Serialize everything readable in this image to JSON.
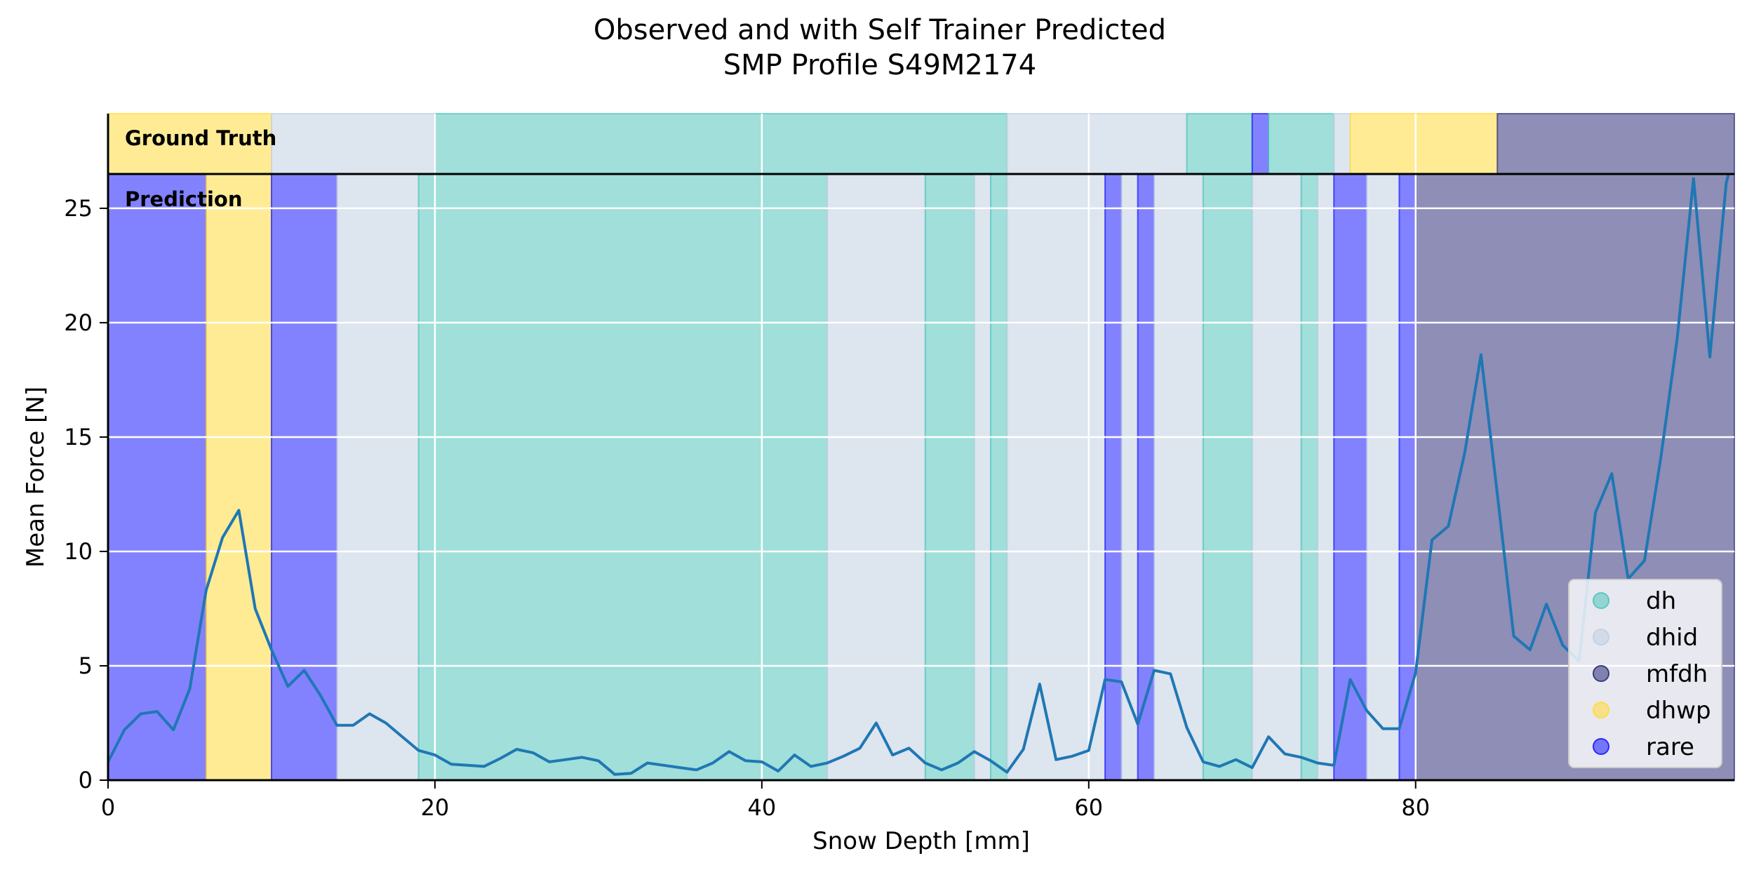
{
  "chart_data": {
    "type": "line",
    "title": "Observed and with Self Trainer Predicted\nSMP Profile S49M2174",
    "title_lines": [
      "Observed and with Self Trainer Predicted",
      "SMP Profile S49M2174"
    ],
    "xlabel": "Snow Depth [mm]",
    "ylabel": "Mean Force [N]",
    "xlim": [
      0,
      99.5
    ],
    "ylim": [
      0,
      26.5
    ],
    "x_ticks": [
      0,
      20,
      40,
      60,
      80
    ],
    "y_ticks": [
      0,
      5,
      10,
      15,
      20,
      25
    ],
    "grid": true,
    "legend_placement": "lower-right",
    "panel_labels": {
      "ground_truth": "Ground Truth",
      "prediction": "Prediction"
    },
    "classes": [
      {
        "name": "dh",
        "color": "#5cc8c0"
      },
      {
        "name": "dhid",
        "color": "#c4d2e4"
      },
      {
        "name": "mfdh",
        "color": "#3c3c82"
      },
      {
        "name": "dhwp",
        "color": "#ffdc46"
      },
      {
        "name": "rare",
        "color": "#2828ff"
      }
    ],
    "ground_truth_segments": [
      {
        "start": 0,
        "end": 10,
        "class": "dhwp"
      },
      {
        "start": 10,
        "end": 20,
        "class": "dhid"
      },
      {
        "start": 20,
        "end": 55,
        "class": "dh"
      },
      {
        "start": 55,
        "end": 66,
        "class": "dhid"
      },
      {
        "start": 66,
        "end": 70,
        "class": "dh"
      },
      {
        "start": 70,
        "end": 71,
        "class": "rare"
      },
      {
        "start": 71,
        "end": 75,
        "class": "dh"
      },
      {
        "start": 75,
        "end": 76,
        "class": "dhid"
      },
      {
        "start": 76,
        "end": 85,
        "class": "dhwp"
      },
      {
        "start": 85,
        "end": 99.5,
        "class": "mfdh"
      }
    ],
    "prediction_segments": [
      {
        "start": 0,
        "end": 6,
        "class": "rare"
      },
      {
        "start": 6,
        "end": 10,
        "class": "dhwp"
      },
      {
        "start": 10,
        "end": 14,
        "class": "rare"
      },
      {
        "start": 14,
        "end": 19,
        "class": "dhid"
      },
      {
        "start": 19,
        "end": 44,
        "class": "dh"
      },
      {
        "start": 44,
        "end": 50,
        "class": "dhid"
      },
      {
        "start": 50,
        "end": 53,
        "class": "dh"
      },
      {
        "start": 53,
        "end": 54,
        "class": "dhid"
      },
      {
        "start": 54,
        "end": 55,
        "class": "dh"
      },
      {
        "start": 55,
        "end": 61,
        "class": "dhid"
      },
      {
        "start": 61,
        "end": 62,
        "class": "rare"
      },
      {
        "start": 62,
        "end": 63,
        "class": "dhid"
      },
      {
        "start": 63,
        "end": 64,
        "class": "rare"
      },
      {
        "start": 64,
        "end": 67,
        "class": "dhid"
      },
      {
        "start": 67,
        "end": 70,
        "class": "dh"
      },
      {
        "start": 70,
        "end": 73,
        "class": "dhid"
      },
      {
        "start": 73,
        "end": 74,
        "class": "dh"
      },
      {
        "start": 74,
        "end": 75,
        "class": "dhid"
      },
      {
        "start": 75,
        "end": 77,
        "class": "rare"
      },
      {
        "start": 77,
        "end": 79,
        "class": "dhid"
      },
      {
        "start": 79,
        "end": 80,
        "class": "rare"
      },
      {
        "start": 80,
        "end": 99.5,
        "class": "mfdh"
      }
    ],
    "series": [
      {
        "color": "#1f77b4",
        "x": [
          0,
          1,
          2,
          3,
          4,
          5,
          6,
          7,
          8,
          9,
          10,
          11,
          12,
          13,
          14,
          15,
          16,
          17,
          18,
          19,
          20,
          21,
          22,
          23,
          24,
          25,
          26,
          27,
          28,
          29,
          30,
          31,
          32,
          33,
          34,
          35,
          36,
          37,
          38,
          39,
          40,
          41,
          42,
          43,
          44,
          45,
          46,
          47,
          48,
          49,
          50,
          51,
          52,
          53,
          54,
          55,
          56,
          57,
          58,
          59,
          60,
          61,
          62,
          63,
          64,
          65,
          66,
          67,
          68,
          69,
          70,
          71,
          72,
          73,
          74,
          75,
          76,
          77,
          78,
          79,
          80,
          81,
          82,
          83,
          84,
          85,
          86,
          87,
          88,
          89,
          90,
          91,
          92,
          93,
          94,
          95,
          96,
          97,
          98,
          99,
          99.5
        ],
        "values": [
          0.8,
          2.2,
          2.9,
          3.0,
          2.2,
          4.0,
          8.3,
          10.6,
          11.8,
          7.5,
          5.7,
          4.1,
          4.8,
          3.7,
          2.4,
          2.4,
          2.9,
          2.5,
          1.9,
          1.3,
          1.1,
          0.7,
          0.65,
          0.6,
          0.95,
          1.35,
          1.2,
          0.8,
          0.9,
          1.0,
          0.85,
          0.25,
          0.3,
          0.75,
          0.65,
          0.55,
          0.45,
          0.75,
          1.25,
          0.85,
          0.8,
          0.4,
          1.1,
          0.6,
          0.75,
          1.05,
          1.4,
          2.5,
          1.1,
          1.4,
          0.75,
          0.45,
          0.75,
          1.25,
          0.85,
          0.35,
          1.35,
          4.2,
          0.9,
          1.05,
          1.3,
          4.4,
          4.3,
          2.45,
          4.8,
          4.65,
          2.3,
          0.8,
          0.6,
          0.9,
          0.55,
          1.9,
          1.15,
          1.0,
          0.75,
          0.65,
          4.4,
          3.05,
          2.25,
          2.25,
          4.7,
          10.5,
          11.1,
          14.3,
          18.6,
          12.5,
          6.3,
          5.7,
          7.7,
          5.9,
          5.2,
          11.7,
          13.4,
          8.8,
          9.6,
          14.1,
          19.3,
          26.3,
          18.5,
          26.1,
          27.5
        ]
      }
    ]
  }
}
